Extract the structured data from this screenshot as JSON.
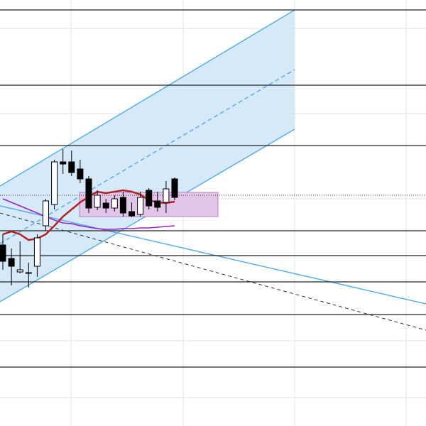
{
  "chart_data": {
    "type": "candlestick",
    "ylim": [
      0,
      600
    ],
    "open": [
      255,
      236,
      217,
      216,
      225,
      282,
      312,
      372,
      372,
      362,
      348,
      308,
      314,
      307,
      322,
      302,
      298,
      332,
      317,
      315,
      348
    ],
    "close": [
      232,
      225,
      220,
      216,
      265,
      317,
      372,
      369,
      357,
      348,
      307,
      325,
      307,
      320,
      300,
      296,
      322,
      310,
      308,
      334,
      322
    ],
    "high": [
      270,
      250,
      260,
      230,
      270,
      320,
      375,
      390,
      388,
      375,
      352,
      332,
      320,
      325,
      330,
      315,
      330,
      335,
      330,
      345,
      350
    ],
    "low": [
      220,
      198,
      215,
      195,
      210,
      275,
      305,
      355,
      352,
      342,
      300,
      304,
      300,
      302,
      295,
      294,
      295,
      305,
      302,
      300,
      318
    ],
    "up_color": "#ffffff",
    "down_color": "#000000",
    "series": [
      {
        "name": null,
        "color": "#b22222",
        "values": [
          270,
          274,
          270,
          262,
          264,
          270,
          282,
          295,
          305,
          315,
          323,
          330,
          328,
          330,
          332,
          330,
          326,
          318,
          315,
          314,
          316
        ]
      },
      {
        "name": null,
        "color": "#a020c0",
        "values": [
          320,
          315,
          310,
          305,
          300,
          295,
          290,
          286,
          285,
          282,
          280,
          278,
          277,
          277,
          278,
          278,
          279,
          279,
          280,
          281,
          282
        ]
      }
    ],
    "levels": [
      586,
      480,
      395,
      275,
      240,
      203,
      157,
      83
    ],
    "level_color": "#222222"
  }
}
